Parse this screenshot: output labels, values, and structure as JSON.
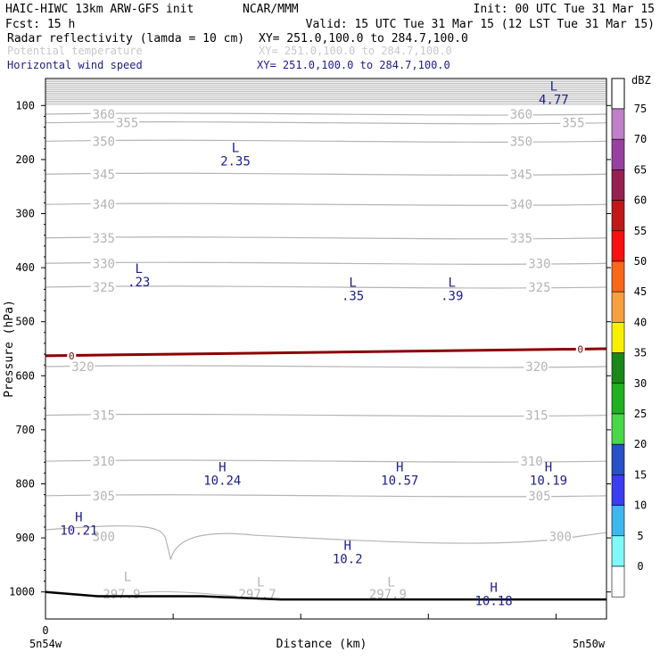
{
  "header": {
    "model": "HAIC-HIWC 13km ARW-GFS init",
    "org": "NCAR/MMM",
    "init": "Init: 00 UTC Tue 31 Mar 15",
    "fcst": "Fcst:   15 h",
    "valid": "Valid: 15 UTC Tue 31 Mar 15 (12 LST Tue 31 Mar 15)",
    "fields": [
      {
        "name": "Radar reflectivity (lamda = 10 cm)",
        "xy": "XY= 251.0,100.0 to 284.7,100.0",
        "color": "#000000"
      },
      {
        "name": "Potential temperature",
        "xy": "XY= 251.0,100.0 to 284.7,100.0",
        "color": "#c8c8c8"
      },
      {
        "name": "Horizontal wind speed",
        "xy": "XY= 251.0,100.0 to 284.7,100.0",
        "color": "#1c1c8c"
      }
    ]
  },
  "chart_data": {
    "type": "contour cross-section",
    "xlabel": "Distance (km)",
    "ylabel": "Pressure (hPa)",
    "x_ticks": [
      {
        "pos": 0,
        "label": "0"
      }
    ],
    "x_endpoints": [
      "5n54w",
      "5n50w"
    ],
    "x_range": [
      0,
      215
    ],
    "ylim": [
      50,
      1050
    ],
    "y_ticks": [
      100,
      200,
      300,
      400,
      500,
      600,
      700,
      800,
      900,
      1000
    ],
    "colorbar": {
      "unit": "dBZ",
      "levels": [
        0,
        5,
        10,
        15,
        20,
        25,
        30,
        35,
        40,
        45,
        50,
        55,
        60,
        65,
        70,
        75
      ],
      "colors": [
        "#ffffff",
        "#7ff8f8",
        "#3cb8f0",
        "#3c3cf0",
        "#2850c8",
        "#48d848",
        "#20b020",
        "#188818",
        "#f8f000",
        "#f8a040",
        "#f86818",
        "#f81010",
        "#c01818",
        "#982050",
        "#9840a0",
        "#c080c8"
      ]
    },
    "theta_contours": [
      {
        "value": 360,
        "p": 116
      },
      {
        "value": 355,
        "p": 132
      },
      {
        "value": 350,
        "p": 166
      },
      {
        "value": 345,
        "p": 227
      },
      {
        "value": 340,
        "p": 283
      },
      {
        "value": 335,
        "p": 345
      },
      {
        "value": 330,
        "p": 392
      },
      {
        "value": 325,
        "p": 436
      },
      {
        "value": 320,
        "p": 583
      },
      {
        "value": 315,
        "p": 673
      },
      {
        "value": 310,
        "p": 758
      },
      {
        "value": 305,
        "p": 822
      },
      {
        "value": 300,
        "p": 897
      }
    ],
    "theta_labels": [
      {
        "text": "360",
        "x": 18,
        "p": 116
      },
      {
        "text": "355",
        "x": 27,
        "p": 132
      },
      {
        "text": "360",
        "x": 178,
        "p": 116
      },
      {
        "text": "355",
        "x": 198,
        "p": 132
      },
      {
        "text": "350",
        "x": 18,
        "p": 166
      },
      {
        "text": "350",
        "x": 178,
        "p": 166
      },
      {
        "text": "345",
        "x": 18,
        "p": 227
      },
      {
        "text": "345",
        "x": 178,
        "p": 227
      },
      {
        "text": "340",
        "x": 18,
        "p": 283
      },
      {
        "text": "340",
        "x": 178,
        "p": 283
      },
      {
        "text": "335",
        "x": 18,
        "p": 345
      },
      {
        "text": "335",
        "x": 178,
        "p": 345
      },
      {
        "text": "330",
        "x": 18,
        "p": 392
      },
      {
        "text": "330",
        "x": 185,
        "p": 392
      },
      {
        "text": "325",
        "x": 18,
        "p": 436
      },
      {
        "text": "325",
        "x": 185,
        "p": 436
      },
      {
        "text": "320",
        "x": 10,
        "p": 583
      },
      {
        "text": "320",
        "x": 184,
        "p": 583
      },
      {
        "text": "315",
        "x": 18,
        "p": 673
      },
      {
        "text": "315",
        "x": 184,
        "p": 673
      },
      {
        "text": "310",
        "x": 18,
        "p": 758
      },
      {
        "text": "310",
        "x": 182,
        "p": 758
      },
      {
        "text": "305",
        "x": 18,
        "p": 822
      },
      {
        "text": "305",
        "x": 185,
        "p": 822
      },
      {
        "text": "300",
        "x": 18,
        "p": 897
      },
      {
        "text": "300",
        "x": 193,
        "p": 897
      },
      {
        "text": "297.9",
        "x": 22,
        "p": 1004
      },
      {
        "text": "297.7",
        "x": 74,
        "p": 1004
      },
      {
        "text": "297.9",
        "x": 124,
        "p": 1004
      }
    ],
    "wind_extrema": [
      {
        "sym": "L",
        "value": "4.77",
        "x": 190,
        "p": 72
      },
      {
        "sym": "L",
        "value": "2.35",
        "x": 68,
        "p": 186
      },
      {
        "sym": "L",
        "value": ".23",
        "x": 31,
        "p": 410
      },
      {
        "sym": "L",
        "value": ".35",
        "x": 113,
        "p": 435
      },
      {
        "sym": "L",
        "value": ".39",
        "x": 151,
        "p": 435
      },
      {
        "sym": "H",
        "value": "10.24",
        "x": 63,
        "p": 777
      },
      {
        "sym": "H",
        "value": "10.57",
        "x": 131,
        "p": 777
      },
      {
        "sym": "H",
        "value": "10.19",
        "x": 188,
        "p": 777
      },
      {
        "sym": "H",
        "value": "10.21",
        "x": 8,
        "p": 869
      },
      {
        "sym": "H",
        "value": "10.2",
        "x": 111,
        "p": 922
      },
      {
        "sym": "H",
        "value": "10.18",
        "x": 167,
        "p": 1000
      }
    ],
    "theta_lows": [
      {
        "sym": "L",
        "x": 30,
        "p": 980
      },
      {
        "sym": "L",
        "x": 81,
        "p": 990
      },
      {
        "sym": "L",
        "x": 131,
        "p": 990
      }
    ],
    "zero_line_label": "0",
    "zero_line": [
      {
        "x": 0,
        "p": 563
      },
      {
        "x": 100,
        "p": 558
      },
      {
        "x": 215,
        "p": 550
      }
    ],
    "terrain": [
      {
        "x": 0,
        "p": 1000
      },
      {
        "x": 20,
        "p": 1008
      },
      {
        "x": 60,
        "p": 1008
      },
      {
        "x": 90,
        "p": 1014
      },
      {
        "x": 215,
        "p": 1014
      }
    ]
  }
}
